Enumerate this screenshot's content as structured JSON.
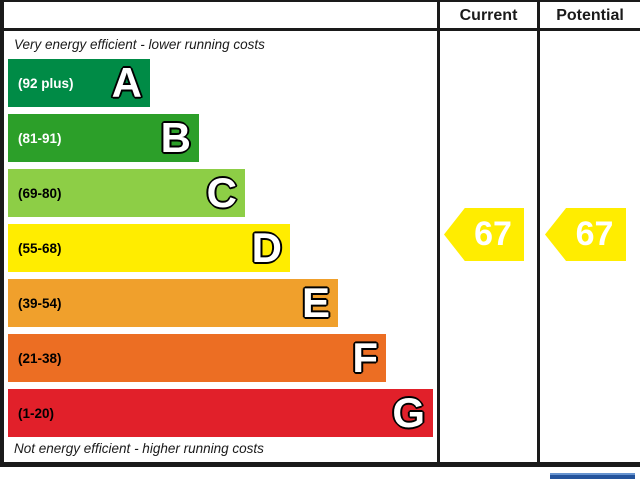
{
  "header": {
    "current_label": "Current",
    "potential_label": "Potential"
  },
  "captions": {
    "top": "Very energy efficient - lower running costs",
    "bottom": "Not energy efficient - higher running costs"
  },
  "bands": [
    {
      "letter": "A",
      "range": "(92 plus)",
      "color": "#008b46",
      "text_color": "#ffffff"
    },
    {
      "letter": "B",
      "range": "(81-91)",
      "color": "#2c9f29",
      "text_color": "#ffffff"
    },
    {
      "letter": "C",
      "range": "(69-80)",
      "color": "#8dce46",
      "text_color": "#000000"
    },
    {
      "letter": "D",
      "range": "(55-68)",
      "color": "#ffed00",
      "text_color": "#000000"
    },
    {
      "letter": "E",
      "range": "(39-54)",
      "color": "#f0a02c",
      "text_color": "#000000"
    },
    {
      "letter": "F",
      "range": "(21-38)",
      "color": "#ec6e23",
      "text_color": "#000000"
    },
    {
      "letter": "G",
      "range": "(1-20)",
      "color": "#e1202a",
      "text_color": "#000000"
    }
  ],
  "ratings": {
    "current": {
      "value": "67",
      "color": "#ffed00"
    },
    "potential": {
      "value": "67",
      "color": "#ffed00"
    }
  },
  "next_section_peek": {
    "color": "#24549c"
  },
  "chart_data": {
    "type": "bar",
    "title": "Energy efficiency rating chart",
    "categories": [
      "A",
      "B",
      "C",
      "D",
      "E",
      "F",
      "G"
    ],
    "band_score_ranges": [
      "92 plus",
      "81-91",
      "69-80",
      "55-68",
      "39-54",
      "21-38",
      "1-20"
    ],
    "band_colors": [
      "#008b46",
      "#2c9f29",
      "#8dce46",
      "#ffed00",
      "#f0a02c",
      "#ec6e23",
      "#e1202a"
    ],
    "series": [
      {
        "name": "Current",
        "values": [
          67
        ]
      },
      {
        "name": "Potential",
        "values": [
          67
        ]
      }
    ],
    "annotations": [
      "Very energy efficient - lower running costs",
      "Not energy efficient - higher running costs"
    ],
    "value_axis_range": [
      1,
      100
    ]
  }
}
